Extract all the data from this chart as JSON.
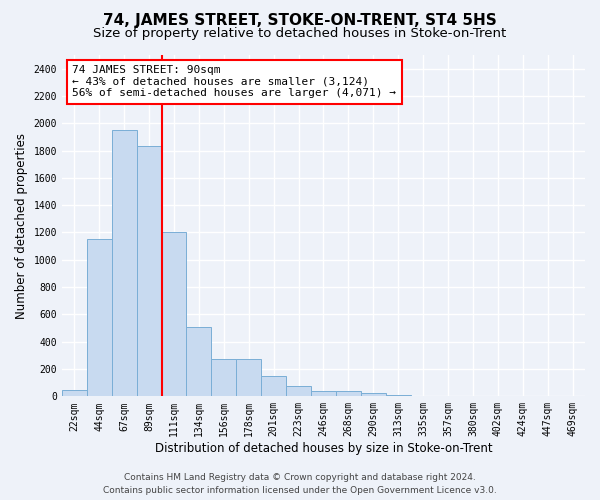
{
  "title": "74, JAMES STREET, STOKE-ON-TRENT, ST4 5HS",
  "subtitle": "Size of property relative to detached houses in Stoke-on-Trent",
  "xlabel": "Distribution of detached houses by size in Stoke-on-Trent",
  "ylabel": "Number of detached properties",
  "categories": [
    "22sqm",
    "44sqm",
    "67sqm",
    "89sqm",
    "111sqm",
    "134sqm",
    "156sqm",
    "178sqm",
    "201sqm",
    "223sqm",
    "246sqm",
    "268sqm",
    "290sqm",
    "313sqm",
    "335sqm",
    "357sqm",
    "380sqm",
    "402sqm",
    "424sqm",
    "447sqm",
    "469sqm"
  ],
  "values": [
    50,
    1150,
    1950,
    1830,
    1200,
    510,
    270,
    270,
    150,
    75,
    40,
    40,
    25,
    10,
    5,
    5,
    5,
    5,
    5,
    5,
    5
  ],
  "bar_color": "#c8daf0",
  "bar_edge_color": "#7aaed6",
  "vline_x": 3.5,
  "vline_color": "red",
  "annotation_line1": "74 JAMES STREET: 90sqm",
  "annotation_line2": "← 43% of detached houses are smaller (3,124)",
  "annotation_line3": "56% of semi-detached houses are larger (4,071) →",
  "annotation_box_color": "white",
  "annotation_box_edge_color": "red",
  "ylim": [
    0,
    2500
  ],
  "yticks": [
    0,
    200,
    400,
    600,
    800,
    1000,
    1200,
    1400,
    1600,
    1800,
    2000,
    2200,
    2400
  ],
  "footer_line1": "Contains HM Land Registry data © Crown copyright and database right 2024.",
  "footer_line2": "Contains public sector information licensed under the Open Government Licence v3.0.",
  "bg_color": "#eef2f9",
  "grid_color": "white",
  "title_fontsize": 11,
  "subtitle_fontsize": 9.5,
  "axis_label_fontsize": 8.5,
  "tick_fontsize": 7,
  "annotation_fontsize": 8,
  "footer_fontsize": 6.5
}
